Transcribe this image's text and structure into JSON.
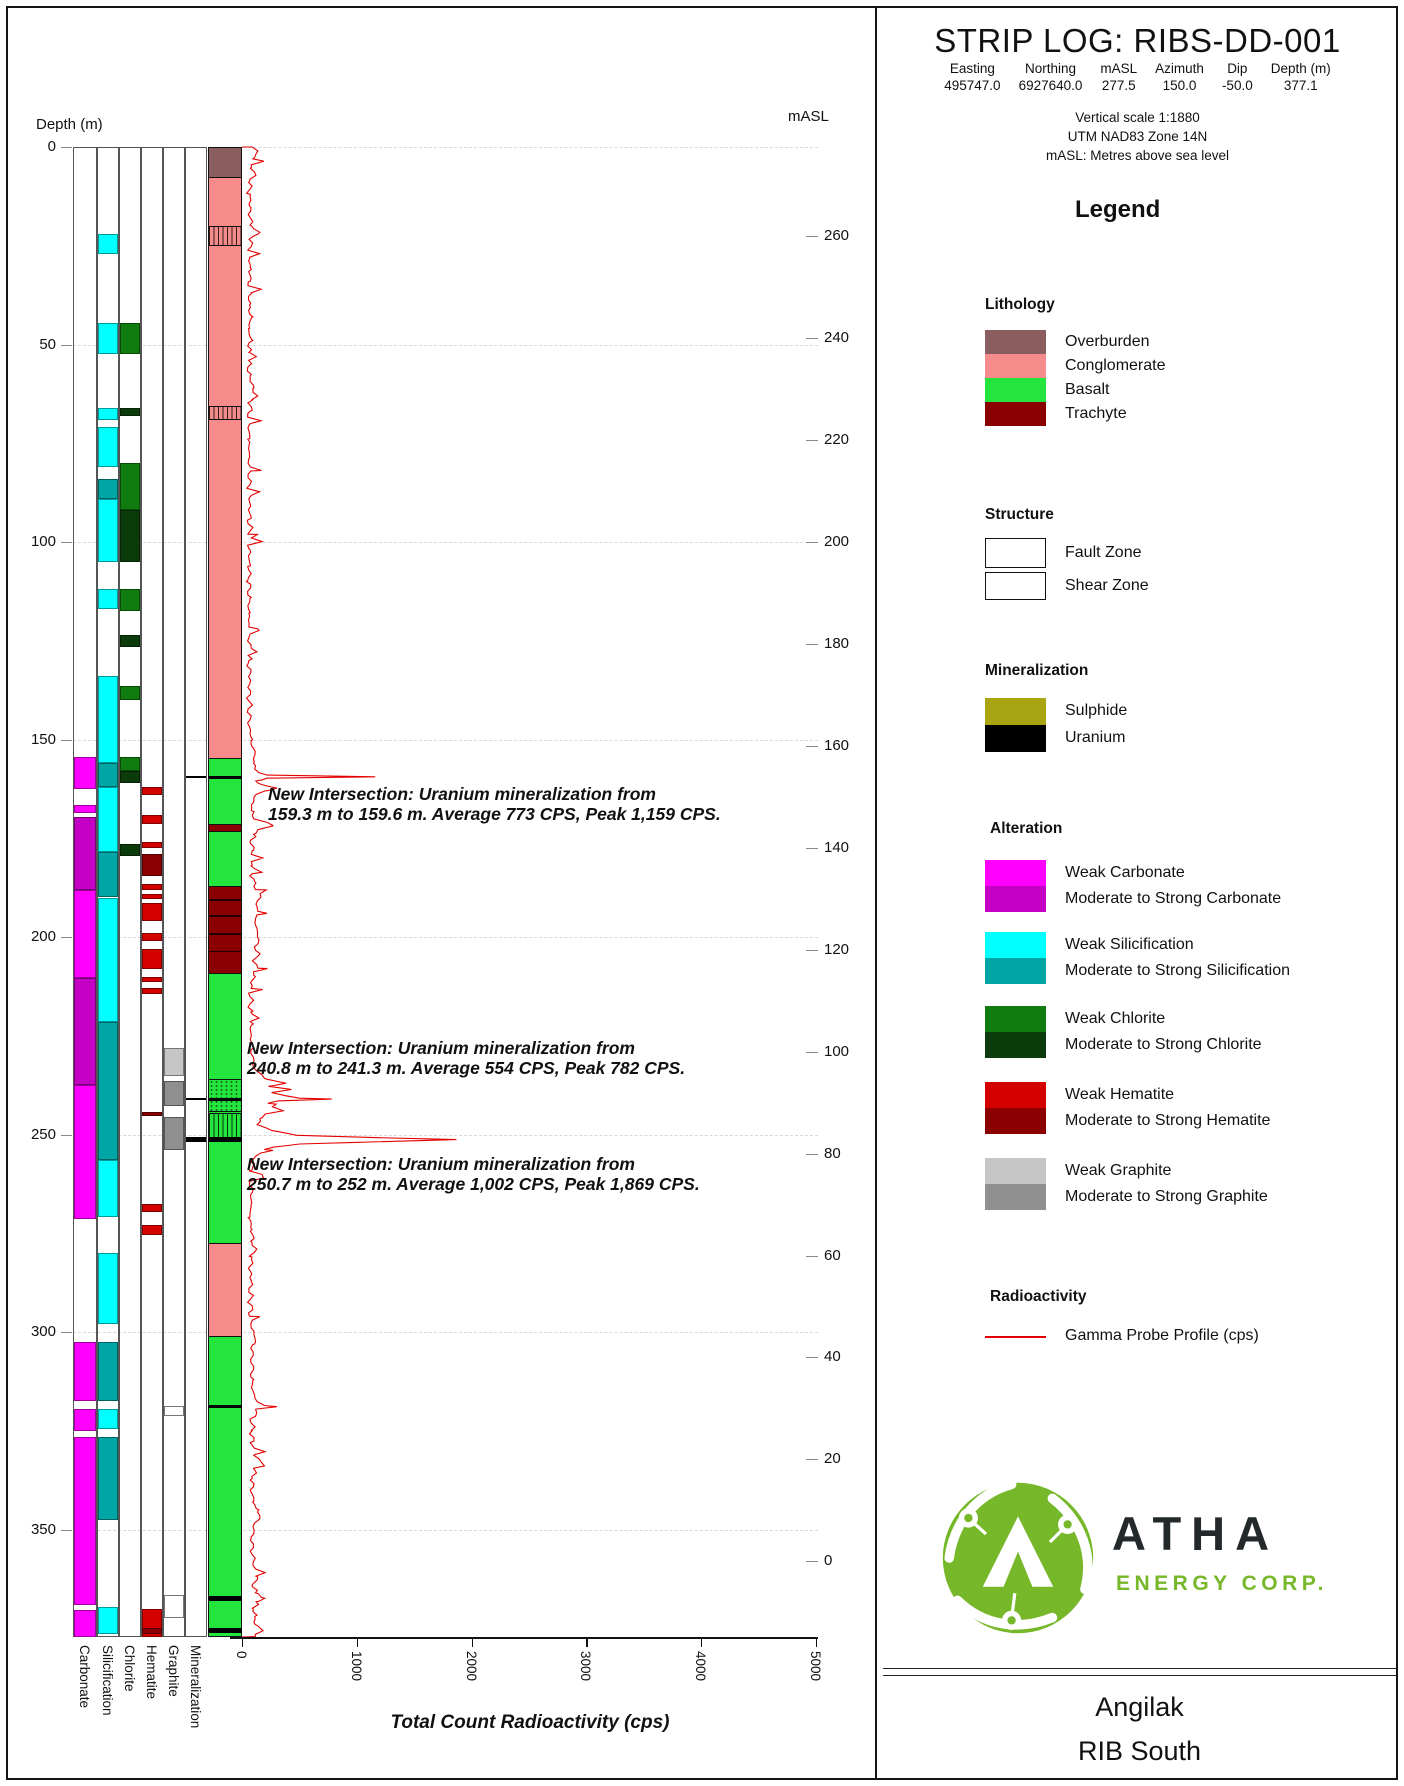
{
  "header": {
    "title": "STRIP LOG: RIBS-DD-001",
    "collar": {
      "headers": [
        "Easting",
        "Northing",
        "mASL",
        "Azimuth",
        "Dip",
        "Depth (m)"
      ],
      "values": [
        "495747.0",
        "6927640.0",
        "277.5",
        "150.0",
        "-50.0",
        "377.1"
      ]
    },
    "notes": [
      "Vertical scale 1:1880",
      "UTM NAD83 Zone 14N",
      "mASL: Metres above sea level"
    ]
  },
  "legend": {
    "title": "Legend",
    "lithology": {
      "heading": "Lithology",
      "items": [
        {
          "label": "Overburden",
          "color": "#8a5e5e"
        },
        {
          "label": "Conglomerate",
          "color": "#f58b8b"
        },
        {
          "label": "Basalt",
          "color": "#23e53e"
        },
        {
          "label": "Trachyte",
          "color": "#8b0000"
        }
      ]
    },
    "structure": {
      "heading": "Structure",
      "items": [
        {
          "label": "Fault Zone",
          "pattern": "fault"
        },
        {
          "label": "Shear Zone",
          "pattern": "shear"
        }
      ]
    },
    "mineralization": {
      "heading": "Mineralization",
      "items": [
        {
          "label": "Sulphide",
          "color": "#a9a411"
        },
        {
          "label": "Uranium",
          "color": "#000000"
        }
      ]
    },
    "alteration": {
      "heading": "Alteration",
      "groups": [
        {
          "weak_label": "Weak Carbonate",
          "strong_label": "Moderate to Strong Carbonate",
          "weak_color": "#ff00ff",
          "strong_color": "#c400c4"
        },
        {
          "weak_label": "Weak Silicification",
          "strong_label": "Moderate to Strong Silicification",
          "weak_color": "#00ffff",
          "strong_color": "#00a5a5"
        },
        {
          "weak_label": "Weak Chlorite",
          "strong_label": "Moderate to Strong Chlorite",
          "weak_color": "#107c10",
          "strong_color": "#0b3b0b"
        },
        {
          "weak_label": "Weak Hematite",
          "strong_label": "Moderate to Strong Hematite",
          "weak_color": "#d40000",
          "strong_color": "#8b0000"
        },
        {
          "weak_label": "Weak Graphite",
          "strong_label": "Moderate to Strong Graphite",
          "weak_color": "#c6c6c6",
          "strong_color": "#8f8f8f"
        }
      ]
    },
    "radioactivity": {
      "heading": "Radioactivity",
      "line_label": "Gamma Probe Profile (cps)",
      "line_color": "#e30000"
    }
  },
  "logo": {
    "brand": "ATHA",
    "sub_brand": "ENERGY CORP.",
    "green": "#76b82a"
  },
  "footer": {
    "project": "Angilak",
    "area": "RIB South"
  },
  "axes": {
    "depth_label": "Depth (m)",
    "masl_label": "mASL",
    "depth_ticks": [
      0,
      50,
      100,
      150,
      200,
      250,
      300,
      350
    ],
    "masl_ticks": [
      260,
      240,
      220,
      200,
      180,
      160,
      140,
      120,
      100,
      80,
      60,
      40,
      20,
      0
    ],
    "x_ticks": [
      0,
      1000,
      2000,
      3000,
      4000,
      5000
    ],
    "x_label": "Total Count Radioactivity (cps)",
    "column_labels": [
      "Carbonate",
      "Silicification",
      "Chlorite",
      "Hematite",
      "Graphite",
      "Mineralization"
    ]
  },
  "chart_data": {
    "type": "strip-log",
    "depth_range_m": [
      0,
      377.1
    ],
    "collar_masl": 277.5,
    "gamma_axis": {
      "min": 0,
      "max": 5000
    },
    "lithology_units": [
      [
        0,
        7.6,
        "overburden"
      ],
      [
        7.6,
        154.7,
        "conglomerate"
      ],
      [
        154.7,
        187,
        "basalt"
      ],
      [
        187,
        209,
        "trachyte"
      ],
      [
        209,
        277.5,
        "basalt"
      ],
      [
        277.5,
        301,
        "conglomerate"
      ],
      [
        301,
        377.1,
        "basalt"
      ]
    ],
    "trachyte_bands": [
      [
        171.5,
        173.3
      ]
    ],
    "trachyte_striations": [
      190.5,
      194.5,
      199,
      203.5
    ],
    "structures": [
      {
        "type": "fault",
        "from": 20,
        "to": 25
      },
      {
        "type": "fault",
        "from": 65.5,
        "to": 69
      },
      {
        "type": "shear",
        "from": 236,
        "to": 244.3
      },
      {
        "type": "fault",
        "from": 244.5,
        "to": 251.5
      }
    ],
    "uranium_intervals": [
      [
        159.3,
        159.6
      ],
      [
        240.8,
        241.3
      ],
      [
        250.7,
        252.0
      ],
      [
        318.5,
        319.3
      ],
      [
        366.9,
        368.0
      ],
      [
        375.0,
        376.3
      ]
    ],
    "alteration": {
      "carbonate": [
        [
          154.5,
          162.5,
          "W"
        ],
        [
          166.5,
          168.5,
          "W"
        ],
        [
          169.5,
          188,
          "S"
        ],
        [
          188,
          210.5,
          "W"
        ],
        [
          210.5,
          237.5,
          "S"
        ],
        [
          237.5,
          271.5,
          "W"
        ],
        [
          302.5,
          317.5,
          "W"
        ],
        [
          319.5,
          325,
          "W"
        ],
        [
          326.5,
          369,
          "W"
        ],
        [
          370.5,
          377.1,
          "W"
        ]
      ],
      "silicification": [
        [
          22,
          27,
          "W"
        ],
        [
          44.5,
          52.5,
          "W"
        ],
        [
          66,
          69,
          "W"
        ],
        [
          71,
          81,
          "W"
        ],
        [
          84,
          89,
          "S"
        ],
        [
          89,
          105,
          "W"
        ],
        [
          112,
          117,
          "W"
        ],
        [
          134,
          156,
          "W"
        ],
        [
          156,
          162,
          "S"
        ],
        [
          162,
          178.5,
          "W"
        ],
        [
          178.5,
          190,
          "S"
        ],
        [
          190,
          221.5,
          "W"
        ],
        [
          221.5,
          256.5,
          "S"
        ],
        [
          256.5,
          271,
          "W"
        ],
        [
          280,
          298,
          "W"
        ],
        [
          302.5,
          317.5,
          "S"
        ],
        [
          319.5,
          324.5,
          "W"
        ],
        [
          326.5,
          347.5,
          "S"
        ],
        [
          369.5,
          376.5,
          "W"
        ]
      ],
      "chlorite": [
        [
          44.5,
          52.5,
          "W"
        ],
        [
          66,
          68,
          "S"
        ],
        [
          80,
          92,
          "W"
        ],
        [
          92,
          105,
          "S"
        ],
        [
          112,
          117.5,
          "W"
        ],
        [
          123.5,
          126.5,
          "S"
        ],
        [
          136.5,
          140,
          "W"
        ],
        [
          154.5,
          158,
          "W"
        ],
        [
          158,
          161,
          "S"
        ],
        [
          176.5,
          179.5,
          "S"
        ]
      ],
      "hematite": [
        [
          162,
          164,
          "W"
        ],
        [
          169,
          171.5,
          "W"
        ],
        [
          176,
          177.5,
          "W"
        ],
        [
          179,
          184.5,
          "S"
        ],
        [
          186.5,
          188,
          "W"
        ],
        [
          189,
          190.5,
          "W"
        ],
        [
          191.5,
          196,
          "W"
        ],
        [
          199,
          201,
          "W"
        ],
        [
          203,
          208,
          "W"
        ],
        [
          210,
          211.5,
          "W"
        ],
        [
          213,
          214.5,
          "W"
        ],
        [
          244.3,
          245.3,
          "S"
        ],
        [
          267.5,
          269.5,
          "W"
        ],
        [
          273,
          275.5,
          "W"
        ],
        [
          370,
          377.1,
          "W"
        ],
        [
          375,
          376.4,
          "S"
        ]
      ],
      "graphite": [
        [
          228,
          235.3,
          "W"
        ],
        [
          236.5,
          242.8,
          "S"
        ],
        [
          245.5,
          254,
          "S"
        ],
        [
          318.7,
          321.3,
          "T"
        ],
        [
          366.5,
          372.3,
          "T"
        ]
      ]
    },
    "annotations": [
      {
        "line1": "New Intersection: Uranium mineralization from",
        "line2": "159.3 m to 159.6 m. Average 773 CPS, Peak 1,159 CPS."
      },
      {
        "line1": "New Intersection: Uranium mineralization from",
        "line2": "240.8 m to 241.3 m. Average 554 CPS, Peak 782 CPS."
      },
      {
        "line1": "New Intersection: Uranium mineralization from",
        "line2": "250.7 m to 252 m. Average 1,002 CPS, Peak 1,869 CPS."
      }
    ],
    "gamma_profile_cps": [
      [
        0,
        90
      ],
      [
        1,
        140
      ],
      [
        3,
        100
      ],
      [
        5,
        80
      ],
      [
        7,
        110
      ],
      [
        9,
        70
      ],
      [
        12,
        60
      ],
      [
        15,
        75
      ],
      [
        18,
        65
      ],
      [
        20,
        95
      ],
      [
        22,
        135
      ],
      [
        23,
        90
      ],
      [
        25,
        70
      ],
      [
        28,
        60
      ],
      [
        31,
        72
      ],
      [
        34,
        62
      ],
      [
        37,
        70
      ],
      [
        40,
        64
      ],
      [
        43,
        74
      ],
      [
        46,
        62
      ],
      [
        49,
        70
      ],
      [
        52,
        64
      ],
      [
        55,
        58
      ],
      [
        58,
        66
      ],
      [
        61,
        96
      ],
      [
        63,
        120
      ],
      [
        64,
        80
      ],
      [
        67,
        66
      ],
      [
        70,
        60
      ],
      [
        74,
        66
      ],
      [
        78,
        60
      ],
      [
        82,
        68
      ],
      [
        86,
        62
      ],
      [
        90,
        70
      ],
      [
        94,
        62
      ],
      [
        98,
        72
      ],
      [
        102,
        64
      ],
      [
        106,
        60
      ],
      [
        110,
        66
      ],
      [
        114,
        58
      ],
      [
        118,
        64
      ],
      [
        122,
        60
      ],
      [
        126,
        66
      ],
      [
        130,
        60
      ],
      [
        134,
        70
      ],
      [
        138,
        62
      ],
      [
        142,
        66
      ],
      [
        146,
        62
      ],
      [
        150,
        78
      ],
      [
        152,
        92
      ],
      [
        154,
        120
      ],
      [
        156,
        95
      ],
      [
        158,
        130
      ],
      [
        159,
        200
      ],
      [
        159.45,
        1159
      ],
      [
        159.8,
        220
      ],
      [
        160.5,
        130
      ],
      [
        161.5,
        180
      ],
      [
        162.3,
        300
      ],
      [
        163,
        200
      ],
      [
        164,
        120
      ],
      [
        166,
        90
      ],
      [
        168,
        85
      ],
      [
        170,
        110
      ],
      [
        171.8,
        270
      ],
      [
        172.6,
        180
      ],
      [
        174,
        100
      ],
      [
        176,
        86
      ],
      [
        178,
        92
      ],
      [
        180,
        84
      ],
      [
        182,
        96
      ],
      [
        184,
        86
      ],
      [
        186,
        100
      ],
      [
        188,
        130
      ],
      [
        190,
        160
      ],
      [
        192,
        120
      ],
      [
        194,
        140
      ],
      [
        196,
        110
      ],
      [
        198,
        126
      ],
      [
        200,
        150
      ],
      [
        202,
        120
      ],
      [
        204,
        136
      ],
      [
        206,
        116
      ],
      [
        208,
        126
      ],
      [
        210,
        96
      ],
      [
        213,
        80
      ],
      [
        216,
        74
      ],
      [
        219,
        80
      ],
      [
        222,
        72
      ],
      [
        225,
        78
      ],
      [
        228,
        84
      ],
      [
        231,
        92
      ],
      [
        234,
        120
      ],
      [
        236,
        220
      ],
      [
        237,
        380
      ],
      [
        237.8,
        240
      ],
      [
        238.6,
        430
      ],
      [
        239.4,
        260
      ],
      [
        240.2,
        380
      ],
      [
        240.8,
        500
      ],
      [
        241.05,
        782
      ],
      [
        241.5,
        320
      ],
      [
        242.3,
        200
      ],
      [
        243.2,
        280
      ],
      [
        244,
        360
      ],
      [
        244.8,
        220
      ],
      [
        246,
        140
      ],
      [
        247.5,
        160
      ],
      [
        249,
        260
      ],
      [
        250.2,
        480
      ],
      [
        250.8,
        1200
      ],
      [
        251.3,
        1869
      ],
      [
        251.9,
        1100
      ],
      [
        252.4,
        500
      ],
      [
        253.2,
        280
      ],
      [
        254,
        180
      ],
      [
        255.5,
        120
      ],
      [
        257,
        96
      ],
      [
        259,
        84
      ],
      [
        262,
        76
      ],
      [
        265,
        86
      ],
      [
        268,
        78
      ],
      [
        271,
        70
      ],
      [
        274,
        80
      ],
      [
        277,
        96
      ],
      [
        279,
        110
      ],
      [
        281,
        84
      ],
      [
        284,
        72
      ],
      [
        287,
        80
      ],
      [
        290,
        72
      ],
      [
        293,
        78
      ],
      [
        296,
        72
      ],
      [
        299,
        84
      ],
      [
        301,
        120
      ],
      [
        303,
        96
      ],
      [
        306,
        84
      ],
      [
        309,
        92
      ],
      [
        312,
        82
      ],
      [
        315,
        96
      ],
      [
        318,
        130
      ],
      [
        318.9,
        230
      ],
      [
        319.6,
        130
      ],
      [
        322,
        92
      ],
      [
        325,
        84
      ],
      [
        328,
        96
      ],
      [
        331,
        110
      ],
      [
        333,
        160
      ],
      [
        334.5,
        110
      ],
      [
        337,
        92
      ],
      [
        340,
        86
      ],
      [
        343,
        102
      ],
      [
        345,
        130
      ],
      [
        347,
        160
      ],
      [
        348.5,
        110
      ],
      [
        351,
        92
      ],
      [
        354,
        86
      ],
      [
        357,
        96
      ],
      [
        360,
        110
      ],
      [
        362,
        128
      ],
      [
        364,
        104
      ],
      [
        366,
        116
      ],
      [
        367.4,
        210
      ],
      [
        368.3,
        130
      ],
      [
        370,
        104
      ],
      [
        372,
        116
      ],
      [
        374,
        110
      ],
      [
        375.6,
        190
      ],
      [
        376.5,
        130
      ],
      [
        377.1,
        100
      ]
    ],
    "colors": {
      "overburden": "#8a5e5e",
      "conglomerate": "#f58b8b",
      "basalt": "#23e53e",
      "trachyte": "#8b0000",
      "carbonate_w": "#ff00ff",
      "carbonate_s": "#c400c4",
      "silicification_w": "#00ffff",
      "silicification_s": "#00a5a5",
      "chlorite_w": "#107c10",
      "chlorite_s": "#0b3b0b",
      "hematite_w": "#d40000",
      "hematite_s": "#8b0000",
      "graphite_w": "#c6c6c6",
      "graphite_s": "#8f8f8f",
      "uranium": "#000000",
      "sulphide": "#a9a411",
      "gamma": "#e30000"
    }
  }
}
